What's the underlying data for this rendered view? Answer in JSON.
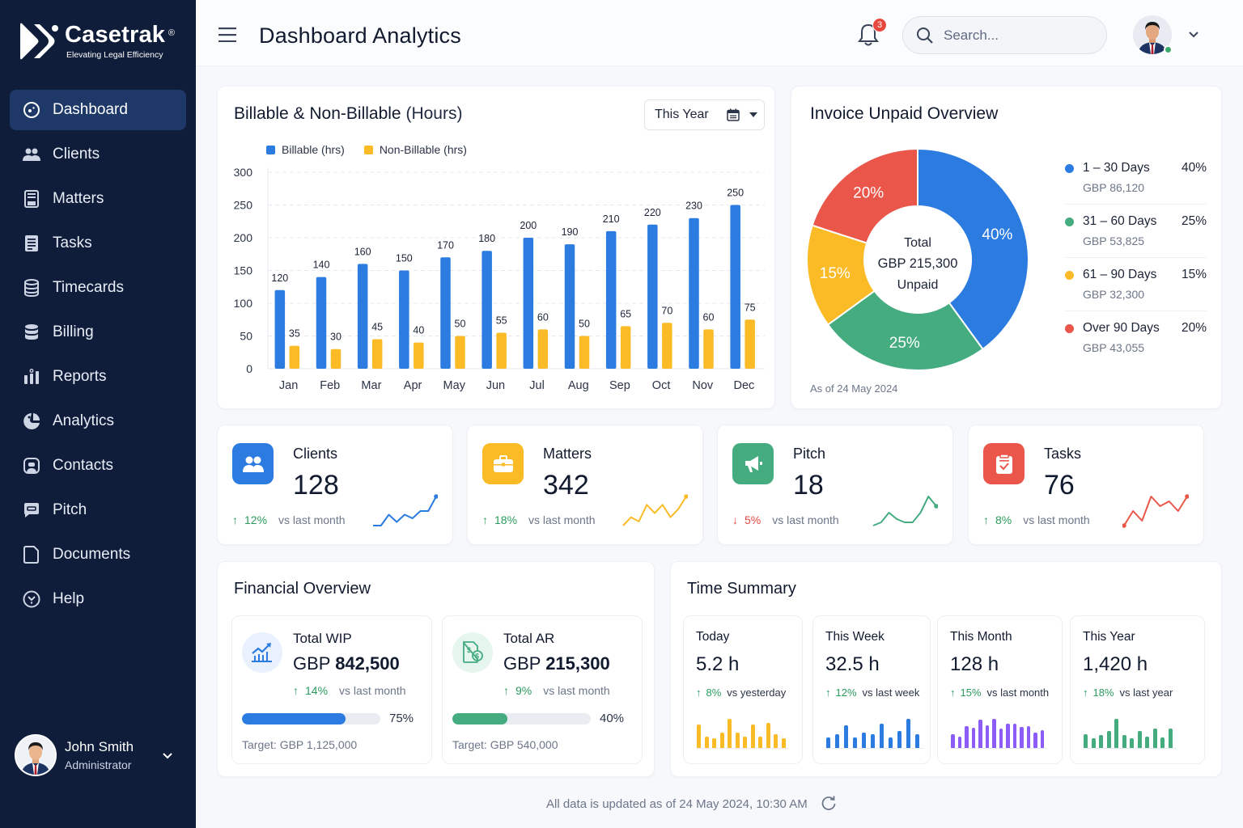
{
  "brand": {
    "name": "Casetrak",
    "registered": "®",
    "tagline": "Elevating Legal Efficiency"
  },
  "sidebar": {
    "items": [
      {
        "label": "Dashboard",
        "icon": "dashboard-icon",
        "active": true
      },
      {
        "label": "Clients",
        "icon": "users-icon"
      },
      {
        "label": "Matters",
        "icon": "matters-icon"
      },
      {
        "label": "Tasks",
        "icon": "tasks-icon"
      },
      {
        "label": "Timecards",
        "icon": "database-icon"
      },
      {
        "label": "Billing",
        "icon": "billing-icon"
      },
      {
        "label": "Reports",
        "icon": "bar-chart-icon"
      },
      {
        "label": "Analytics",
        "icon": "analytics-icon"
      },
      {
        "label": "Contacts",
        "icon": "contacts-icon"
      },
      {
        "label": "Pitch",
        "icon": "chat-icon"
      },
      {
        "label": "Documents",
        "icon": "document-icon"
      },
      {
        "label": "Help",
        "icon": "help-icon"
      }
    ],
    "user": {
      "name": "John Smith",
      "role": "Administrator"
    }
  },
  "header": {
    "title": "Dashboard Analytics",
    "notification_count": "3",
    "search_placeholder": "Search..."
  },
  "billable": {
    "title": "Billable & Non-Billable",
    "title_suffix": "(Hours)",
    "period": "This Year",
    "legend": [
      "Billable (hrs)",
      "Non-Billable (hrs)"
    ]
  },
  "chart_data": [
    {
      "type": "bar",
      "title": "Billable & Non-Billable (Hours)",
      "categories": [
        "Jan",
        "Feb",
        "Mar",
        "Apr",
        "May",
        "Jun",
        "Jul",
        "Aug",
        "Sep",
        "Oct",
        "Nov",
        "Dec"
      ],
      "series": [
        {
          "name": "Billable (hrs)",
          "color": "#2b7be0",
          "values": [
            120,
            140,
            160,
            150,
            170,
            180,
            200,
            190,
            210,
            220,
            230,
            250
          ]
        },
        {
          "name": "Non-Billable (hrs)",
          "color": "#fbbb27",
          "values": [
            35,
            30,
            45,
            40,
            50,
            55,
            60,
            50,
            65,
            70,
            60,
            75
          ]
        }
      ],
      "yticks": [
        0,
        50,
        100,
        150,
        200,
        250,
        300
      ],
      "ylim": [
        0,
        300
      ],
      "grid": true,
      "legend": "top-left"
    },
    {
      "type": "pie",
      "title": "Invoice Unpaid Overview",
      "center": {
        "line1": "Total",
        "line2": "GBP 215,300",
        "line3": "Unpaid"
      },
      "slices": [
        {
          "label": "1 – 30 Days",
          "percent": 40,
          "amount": "GBP 86,120",
          "color": "#2b7be0"
        },
        {
          "label": "31 – 60 Days",
          "percent": 25,
          "amount": "GBP 53,825",
          "color": "#45ac80"
        },
        {
          "label": "61 – 90 Days",
          "percent": 15,
          "amount": "GBP 32,300",
          "color": "#fbbb27"
        },
        {
          "label": "Over 90 Days",
          "percent": 20,
          "amount": "GBP 43,055",
          "color": "#ea564a"
        }
      ],
      "note": "As of 24 May 2024"
    }
  ],
  "stats": [
    {
      "label": "Clients",
      "value": "128",
      "change": "12%",
      "direction": "up",
      "vs": "vs last month",
      "color": "#2b7be0",
      "icon": "users-icon",
      "spark": [
        2,
        2,
        5,
        3,
        5,
        4,
        6,
        6,
        10
      ]
    },
    {
      "label": "Matters",
      "value": "342",
      "change": "18%",
      "direction": "up",
      "vs": "vs last month",
      "color": "#fbbb27",
      "icon": "briefcase-icon",
      "spark": [
        2,
        4,
        3,
        7,
        5,
        7,
        4,
        6,
        9
      ]
    },
    {
      "label": "Pitch",
      "value": "18",
      "change": "5%",
      "direction": "down",
      "vs": "vs last month",
      "color": "#45ac80",
      "icon": "megaphone-icon",
      "spark": [
        1,
        2,
        5,
        3,
        2,
        2,
        5,
        10,
        7
      ]
    },
    {
      "label": "Tasks",
      "value": "76",
      "change": "8%",
      "direction": "up",
      "vs": "vs last month",
      "color": "#ea564a",
      "icon": "clipboard-check-icon",
      "spark": [
        2,
        5,
        3,
        8,
        6,
        7,
        5,
        8
      ]
    }
  ],
  "financial": {
    "title": "Financial Overview",
    "items": [
      {
        "label": "Total WIP",
        "currency": "GBP",
        "amount": "842,500",
        "change": "14%",
        "vs": "vs last month",
        "progress": 75,
        "progress_label": "75%",
        "target": "Target: GBP 1,125,000",
        "color": "#2b7be0",
        "bg": "#e8f1fd",
        "icon": "trend-chart-icon"
      },
      {
        "label": "Total AR",
        "currency": "GBP",
        "amount": "215,300",
        "change": "9%",
        "vs": "vs last month",
        "progress": 40,
        "progress_label": "40%",
        "target": "Target: GBP 540,000",
        "color": "#45ac80",
        "bg": "#e6f5ee",
        "icon": "invoice-dollar-icon"
      }
    ]
  },
  "time_summary": {
    "title": "Time Summary",
    "items": [
      {
        "label": "Today",
        "value": "5.2 h",
        "change": "8%",
        "vs": "vs yesterday",
        "color": "#fbbb27",
        "bars": [
          6,
          3,
          2.5,
          4,
          7.5,
          4,
          3,
          6,
          3,
          6.5,
          3.5,
          2.5
        ]
      },
      {
        "label": "This Week",
        "value": "32.5 h",
        "change": "12%",
        "vs": "vs last week",
        "color": "#2b7be0",
        "bars": [
          3,
          4,
          6.5,
          3,
          4.5,
          4,
          7,
          3,
          5,
          8.5,
          4
        ]
      },
      {
        "label": "This Month",
        "value": "128 h",
        "change": "15%",
        "vs": "vs last month",
        "color": "#8b5cf6",
        "bars": [
          3,
          2.5,
          4.8,
          4.5,
          6.3,
          5,
          6.4,
          4.3,
          5.3,
          5.3,
          4.6,
          4.8,
          3.4,
          3.9
        ]
      },
      {
        "label": "This Year",
        "value": "1,420 h",
        "change": "18%",
        "vs": "vs last year",
        "color": "#45ac80",
        "bars": [
          4.5,
          3,
          4.2,
          5.4,
          9.3,
          4.2,
          3.2,
          5.3,
          3.5,
          6.3,
          3.3,
          6.1
        ]
      }
    ]
  },
  "footer": {
    "text": "All data is updated as of 24 May 2024, 10:30 AM"
  }
}
